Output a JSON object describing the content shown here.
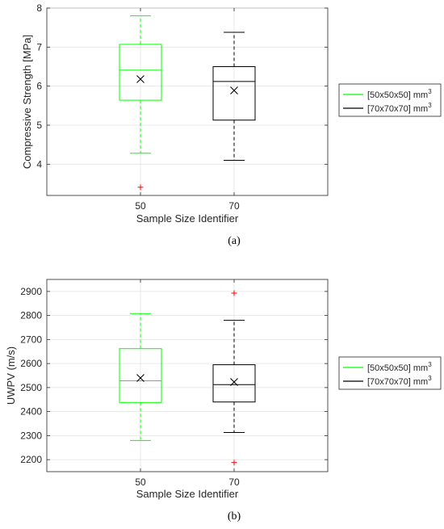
{
  "figure": {
    "caption_a": "(a)",
    "caption_b": "(b)"
  },
  "chart_data": [
    {
      "type": "box",
      "title": "",
      "xlabel": "Sample Size Identifier",
      "ylabel": "Compressive Strength [MPa]",
      "categories": [
        "50",
        "70"
      ],
      "ylim": [
        3.2,
        8.0
      ],
      "yticks": [
        4,
        5,
        6,
        7,
        8
      ],
      "grid": true,
      "legend": {
        "placement": "right-outside",
        "entries": [
          {
            "text": "[50x50x50] mm",
            "sup": "3",
            "color": "#00ff00"
          },
          {
            "text": "[70x70x70] mm",
            "sup": "3",
            "color": "#000000"
          }
        ]
      },
      "series": [
        {
          "category": "50",
          "color": "#00ff00",
          "whisker_low": 4.28,
          "q1": 5.64,
          "median": 6.41,
          "q3": 7.07,
          "whisker_high": 7.8,
          "mean": 6.18,
          "outliers": [
            3.41
          ]
        },
        {
          "category": "70",
          "color": "#000000",
          "whisker_low": 4.1,
          "q1": 5.13,
          "median": 6.12,
          "q3": 6.5,
          "whisker_high": 7.38,
          "mean": 5.89,
          "outliers": []
        }
      ],
      "outlier_color": "#ff0000"
    },
    {
      "type": "box",
      "title": "",
      "xlabel": "Sample Size Identifier",
      "ylabel": "UWPV (m/s)",
      "categories": [
        "50",
        "70"
      ],
      "ylim": [
        2150,
        2950
      ],
      "yticks": [
        2200,
        2300,
        2400,
        2500,
        2600,
        2700,
        2800,
        2900
      ],
      "grid": true,
      "legend": {
        "placement": "right-outside",
        "entries": [
          {
            "text": "[50x50x50] mm",
            "sup": "3",
            "color": "#00ff00"
          },
          {
            "text": "[70x70x70] mm",
            "sup": "3",
            "color": "#000000"
          }
        ]
      },
      "series": [
        {
          "category": "50",
          "color": "#00ff00",
          "whisker_low": 2280,
          "q1": 2438,
          "median": 2528,
          "q3": 2662,
          "whisker_high": 2808,
          "mean": 2540,
          "outliers": []
        },
        {
          "category": "70",
          "color": "#000000",
          "whisker_low": 2313,
          "q1": 2440,
          "median": 2512,
          "q3": 2595,
          "whisker_high": 2780,
          "mean": 2523,
          "outliers": [
            2893,
            2188
          ]
        }
      ],
      "outlier_color": "#ff0000"
    }
  ]
}
